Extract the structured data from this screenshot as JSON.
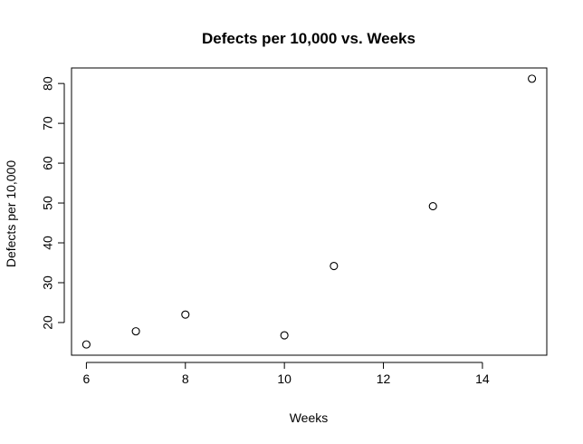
{
  "chart_data": {
    "type": "scatter",
    "title": "Defects per 10,000 vs. Weeks",
    "xlabel": "Weeks",
    "ylabel": "Defects per 10,000",
    "x": [
      6,
      7,
      8,
      10,
      11,
      13,
      15
    ],
    "y": [
      14.5,
      17.8,
      22.0,
      16.8,
      34.2,
      49.2,
      81.2
    ],
    "xlim": [
      5.7,
      15.3
    ],
    "ylim": [
      11.8,
      83.9
    ],
    "xticks": [
      6,
      8,
      10,
      12,
      14
    ],
    "yticks": [
      20,
      30,
      40,
      50,
      60,
      70,
      80
    ],
    "grid": false,
    "legend": "none",
    "marker": "open-circle",
    "colors": {
      "marker": "#000000",
      "axis": "#000000",
      "background": "#ffffff"
    }
  }
}
